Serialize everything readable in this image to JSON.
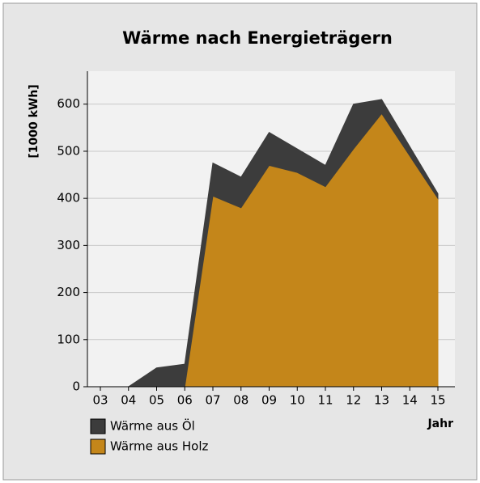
{
  "chart_data": {
    "type": "stacked_area",
    "title": "Wärme nach Energieträgern",
    "y_label": "[1000 kWh]",
    "x_label": "Jahr",
    "categories": [
      "03",
      "04",
      "05",
      "06",
      "07",
      "08",
      "09",
      "10",
      "11",
      "12",
      "13",
      "14",
      "15"
    ],
    "series": [
      {
        "name": "Wärme aus Öl",
        "color": "#3c3c3c",
        "values": [
          0,
          0,
          40,
          48,
          70,
          65,
          70,
          50,
          45,
          95,
          30,
          20,
          10
        ]
      },
      {
        "name": "Wärme aus Holz",
        "color": "#c4861a",
        "values": [
          0,
          0,
          0,
          0,
          405,
          380,
          470,
          455,
          425,
          505,
          580,
          490,
          400
        ]
      }
    ],
    "ylim": [
      0,
      670
    ],
    "yticks": [
      0,
      100,
      200,
      300,
      400,
      500,
      600
    ],
    "grid": true
  }
}
